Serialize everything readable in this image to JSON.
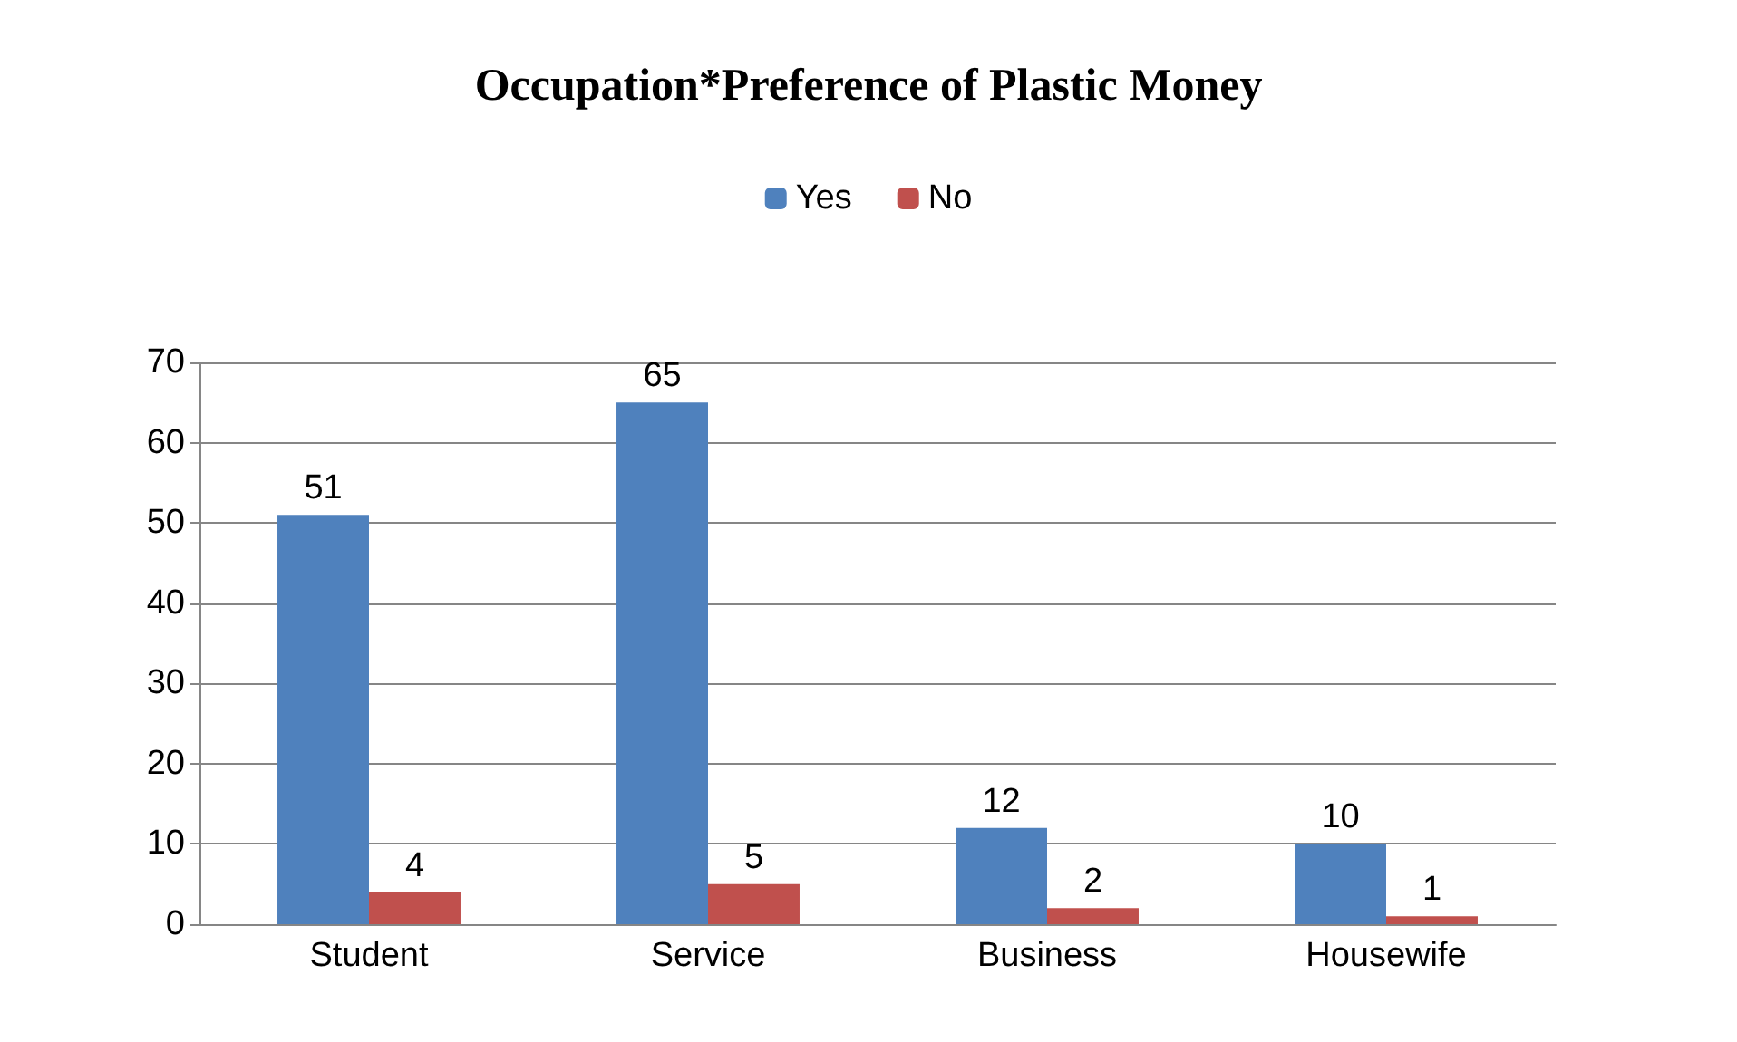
{
  "chart_data": {
    "type": "bar",
    "title": "Occupation*Preference of Plastic Money",
    "categories": [
      "Student",
      "Service",
      "Business",
      "Housewife"
    ],
    "series": [
      {
        "name": "Yes",
        "color": "#4f81bd",
        "values": [
          51,
          65,
          12,
          10
        ]
      },
      {
        "name": "No",
        "color": "#c0504d",
        "values": [
          4,
          5,
          2,
          1
        ]
      }
    ],
    "ylim": [
      0,
      70
    ],
    "yticks": [
      0,
      10,
      20,
      30,
      40,
      50,
      60,
      70
    ],
    "grid": "y",
    "legend": "top",
    "data_labels": true
  }
}
